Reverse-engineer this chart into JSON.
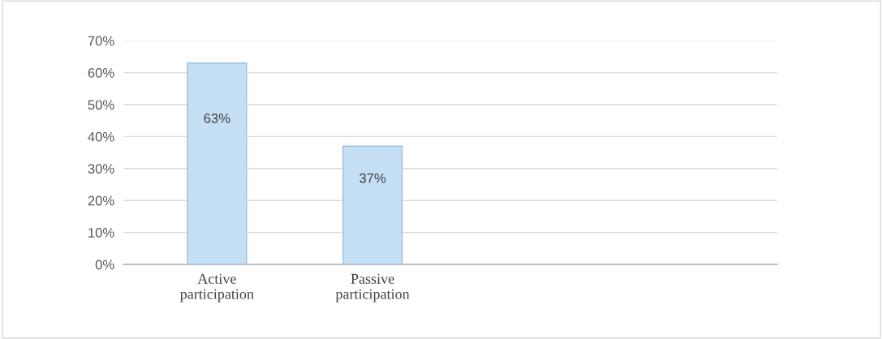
{
  "chart_data": {
    "type": "bar",
    "categories": [
      "Active\nparticipation",
      "Passive\nparticipation"
    ],
    "values": [
      63,
      37
    ],
    "color": "#c5dff5",
    "value_labels": [
      "63%",
      "37%"
    ],
    "ylim": [
      0,
      70
    ],
    "yticks": [
      {
        "value": 0,
        "label": "0%"
      },
      {
        "value": 10,
        "label": "10%"
      },
      {
        "value": 20,
        "label": "20%"
      },
      {
        "value": 30,
        "label": "30%"
      },
      {
        "value": 40,
        "label": "40%"
      },
      {
        "value": 50,
        "label": "50%"
      },
      {
        "value": 60,
        "label": "60%"
      },
      {
        "value": 70,
        "label": "70%"
      }
    ],
    "grid": "y"
  }
}
